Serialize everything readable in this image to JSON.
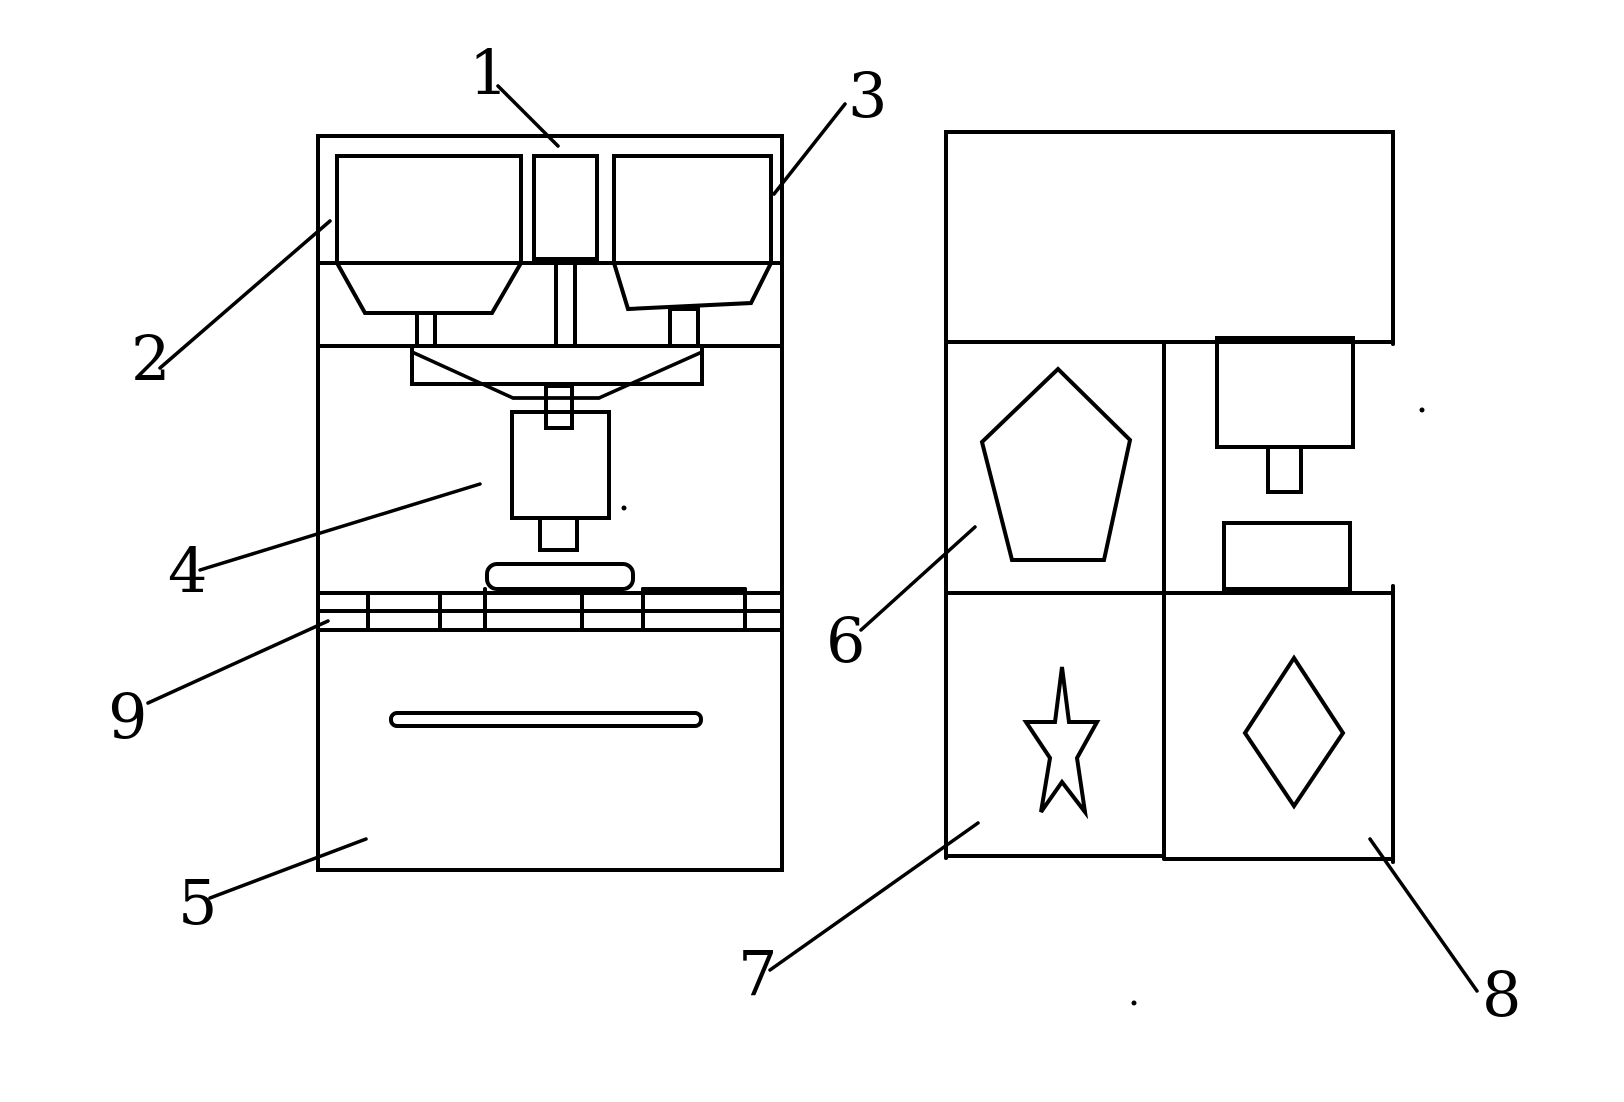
{
  "labels": {
    "l1": "1",
    "l2": "2",
    "l3": "3",
    "l4": "4",
    "l5": "5",
    "l6": "6",
    "l7": "7",
    "l8": "8",
    "l9": "9"
  }
}
